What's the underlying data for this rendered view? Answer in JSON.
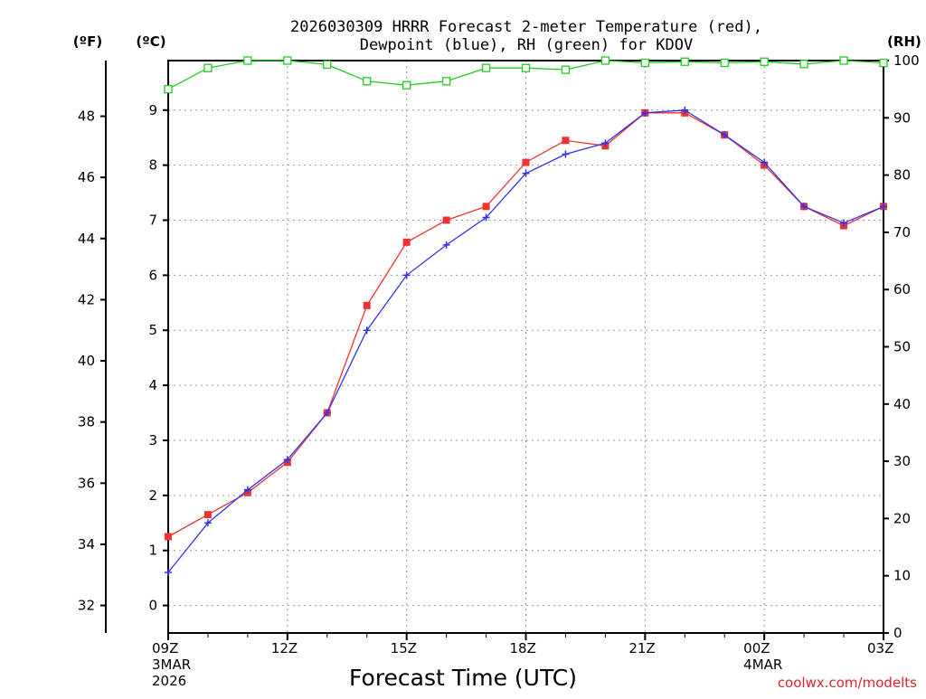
{
  "chart_data": {
    "type": "line",
    "title_line1": "2026030309 HRRR Forecast 2-meter Temperature (red),",
    "title_line2": "Dewpoint (blue), RH (green) for KDOV",
    "unit_f": "(ºF)",
    "unit_c": "(ºC)",
    "unit_rh": "(RH)",
    "xlabel": "Forecast Time (UTC)",
    "credit": "coolwx.com/modelts",
    "hours": [
      0,
      1,
      2,
      3,
      4,
      5,
      6,
      7,
      8,
      9,
      10,
      11,
      12,
      13,
      14,
      15,
      16,
      17,
      18
    ],
    "x_ticks": [
      {
        "hour": 0,
        "label": "09Z",
        "sub1": "3MAR",
        "sub2": "2026"
      },
      {
        "hour": 3,
        "label": "12Z",
        "sub1": "",
        "sub2": ""
      },
      {
        "hour": 6,
        "label": "15Z",
        "sub1": "",
        "sub2": ""
      },
      {
        "hour": 9,
        "label": "18Z",
        "sub1": "",
        "sub2": ""
      },
      {
        "hour": 12,
        "label": "21Z",
        "sub1": "",
        "sub2": ""
      },
      {
        "hour": 15,
        "label": "00Z",
        "sub1": "4MAR",
        "sub2": ""
      },
      {
        "hour": 18,
        "label": "03Z",
        "sub1": "",
        "sub2": ""
      }
    ],
    "x_minor_ticks": [
      1,
      2,
      4,
      5,
      7,
      8,
      10,
      11,
      13,
      14,
      16,
      17
    ],
    "ylim_c": [
      -0.5,
      9.9
    ],
    "ylim_f": [
      31.1,
      49.82
    ],
    "ylim_rh": [
      0,
      100
    ],
    "yticks_c": [
      "0",
      "1",
      "2",
      "3",
      "4",
      "5",
      "6",
      "7",
      "8",
      "9"
    ],
    "yticks_f": [
      "32",
      "34",
      "36",
      "38",
      "40",
      "42",
      "44",
      "46",
      "48"
    ],
    "yticks_rh": [
      "0",
      "10",
      "20",
      "30",
      "40",
      "50",
      "60",
      "70",
      "80",
      "90",
      "100"
    ],
    "grid": true,
    "series": [
      {
        "name": "Temperature",
        "color": "#ee3333",
        "marker": "square",
        "values": [
          1.25,
          1.65,
          2.05,
          2.6,
          3.5,
          5.45,
          6.6,
          7.0,
          7.25,
          8.05,
          8.45,
          8.35,
          8.95,
          8.95,
          8.55,
          8.0,
          7.25,
          6.9,
          7.25
        ]
      },
      {
        "name": "Dewpoint",
        "color": "#3333ee",
        "marker": "plus",
        "values": [
          0.6,
          1.5,
          2.1,
          2.65,
          3.5,
          5.0,
          6.0,
          6.55,
          7.05,
          7.85,
          8.2,
          8.4,
          8.95,
          9.0,
          8.55,
          8.05,
          7.25,
          6.95,
          7.25
        ]
      },
      {
        "name": "RH",
        "color": "#22cc22",
        "marker": "open-square",
        "values": [
          95.0,
          98.7,
          100.0,
          100.0,
          99.3,
          96.4,
          95.7,
          96.4,
          98.7,
          98.7,
          98.4,
          100.0,
          99.6,
          99.8,
          99.6,
          99.8,
          99.4,
          100.0,
          99.6
        ]
      }
    ]
  }
}
